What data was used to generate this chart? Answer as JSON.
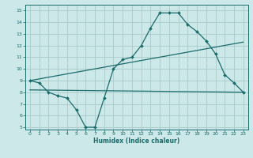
{
  "background_color": "#cde8e8",
  "grid_color": "#aecfcf",
  "line_color": "#1a6b6b",
  "xlabel": "Humidex (Indice chaleur)",
  "xlim": [
    -0.5,
    23.5
  ],
  "ylim": [
    4.8,
    15.5
  ],
  "yticks": [
    5,
    6,
    7,
    8,
    9,
    10,
    11,
    12,
    13,
    14,
    15
  ],
  "xticks": [
    0,
    1,
    2,
    3,
    4,
    5,
    6,
    7,
    8,
    9,
    10,
    11,
    12,
    13,
    14,
    15,
    16,
    17,
    18,
    19,
    20,
    21,
    22,
    23
  ],
  "series1_x": [
    0,
    1,
    2,
    3,
    4,
    5,
    6,
    7,
    8,
    9,
    10,
    11,
    12,
    13,
    14,
    15,
    16,
    17,
    18,
    19,
    20,
    21,
    22,
    23
  ],
  "series1_y": [
    9.0,
    8.8,
    8.0,
    7.7,
    7.5,
    6.5,
    5.0,
    5.0,
    7.5,
    10.0,
    10.8,
    11.0,
    12.0,
    13.5,
    14.8,
    14.8,
    14.8,
    13.8,
    13.2,
    12.4,
    11.3,
    9.5,
    8.8,
    8.0
  ],
  "series2_x": [
    0,
    23
  ],
  "series2_y": [
    9.0,
    12.3
  ],
  "series3_x": [
    0,
    23
  ],
  "series3_y": [
    8.2,
    8.0
  ]
}
